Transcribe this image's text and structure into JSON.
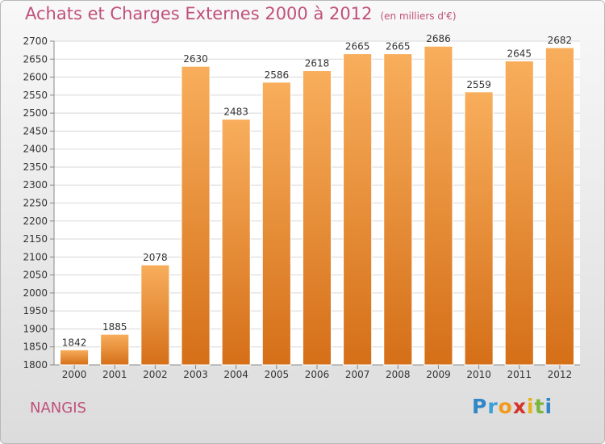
{
  "title": "Achats et Charges Externes 2000 à 2012",
  "unit_note": "(en milliers d'€)",
  "city": "NANGIS",
  "logo": {
    "letters": [
      "P",
      "r",
      "o",
      "x",
      "i",
      "t",
      "i"
    ],
    "colors": [
      "#2f86c8",
      "#3aa0d8",
      "#f29a1c",
      "#d3352b",
      "#e8b21c",
      "#7ab63a",
      "#2f86c8"
    ]
  },
  "colors": {
    "bar": "#f0922e",
    "bar_light": "#f8ae5c",
    "bar_dark": "#d56f18",
    "text": "#333333",
    "grid": "#d8d8d8",
    "accent": "#c0507a"
  },
  "chart_data": {
    "type": "bar",
    "categories": [
      "2000",
      "2001",
      "2002",
      "2003",
      "2004",
      "2005",
      "2006",
      "2007",
      "2008",
      "2009",
      "2010",
      "2011",
      "2012"
    ],
    "values": [
      1842,
      1885,
      2078,
      2630,
      2483,
      2586,
      2618,
      2665,
      2665,
      2686,
      2559,
      2645,
      2682
    ],
    "ylim": [
      1800,
      2700
    ],
    "ytick_step": 50,
    "grid": true
  }
}
